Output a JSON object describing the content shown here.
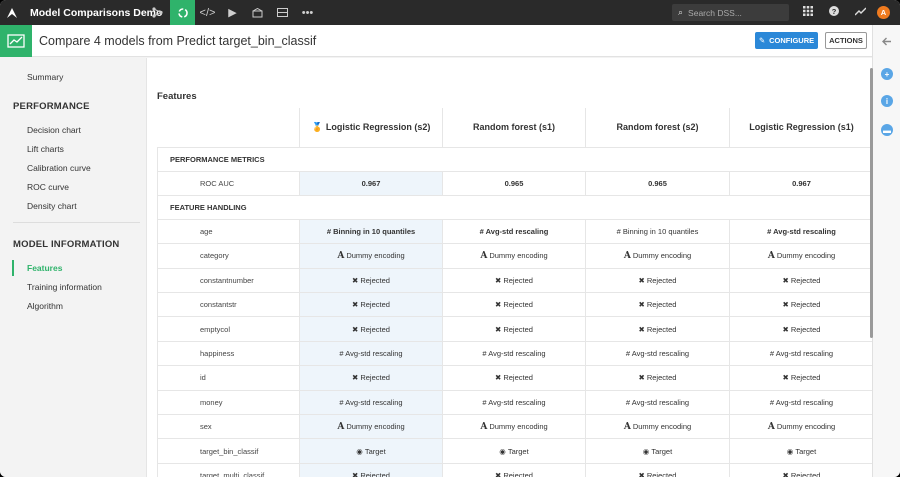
{
  "app": {
    "project_title": "Model Comparisons Demo",
    "search_placeholder": "Search DSS...",
    "user_initial": "A"
  },
  "header": {
    "title": "Compare 4 models from Predict target_bin_classif",
    "configure_label": "CONFIGURE",
    "actions_label": "ACTIONS"
  },
  "sidebar": {
    "summary": "Summary",
    "performance_title": "PERFORMANCE",
    "performance_items": [
      "Decision chart",
      "Lift charts",
      "Calibration curve",
      "ROC curve",
      "Density chart"
    ],
    "model_info_title": "MODEL INFORMATION",
    "model_info_items": [
      "Features",
      "Training information",
      "Algorithm"
    ],
    "active_item": "Features"
  },
  "content": {
    "section_title": "Features",
    "models": [
      {
        "name": "Logistic Regression (s2)",
        "color": "#2a70b8",
        "best": true
      },
      {
        "name": "Random forest (s1)",
        "color": "#f08c2a"
      },
      {
        "name": "Random forest (s2)",
        "color": "#2ea84a"
      },
      {
        "name": "Logistic Regression (s1)",
        "color": "#d62e2e"
      }
    ],
    "groups": [
      {
        "title": "PERFORMANCE METRICS",
        "rows": [
          {
            "feature": "ROC AUC",
            "values": [
              "0.967",
              "0.965",
              "0.965",
              "0.967"
            ],
            "bold": [
              true,
              true,
              true,
              true
            ]
          }
        ]
      },
      {
        "title": "FEATURE HANDLING",
        "rows": [
          {
            "feature": "age",
            "values": [
              "# Binning in 10 quantiles",
              "# Avg-std rescaling",
              "# Binning in 10 quantiles",
              "# Avg-std rescaling"
            ],
            "bold": [
              true,
              true,
              false,
              true
            ]
          },
          {
            "feature": "category",
            "values": [
              "Dummy encoding",
              "Dummy encoding",
              "Dummy encoding",
              "Dummy encoding"
            ],
            "icon": "text-A"
          },
          {
            "feature": "constantnumber",
            "values": [
              "Rejected",
              "Rejected",
              "Rejected",
              "Rejected"
            ],
            "icon": "x"
          },
          {
            "feature": "constantstr",
            "values": [
              "Rejected",
              "Rejected",
              "Rejected",
              "Rejected"
            ],
            "icon": "x"
          },
          {
            "feature": "emptycol",
            "values": [
              "Rejected",
              "Rejected",
              "Rejected",
              "Rejected"
            ],
            "icon": "x"
          },
          {
            "feature": "happiness",
            "values": [
              "# Avg-std rescaling",
              "# Avg-std rescaling",
              "# Avg-std rescaling",
              "# Avg-std rescaling"
            ]
          },
          {
            "feature": "id",
            "values": [
              "Rejected",
              "Rejected",
              "Rejected",
              "Rejected"
            ],
            "icon": "x"
          },
          {
            "feature": "money",
            "values": [
              "# Avg-std rescaling",
              "# Avg-std rescaling",
              "# Avg-std rescaling",
              "# Avg-std rescaling"
            ]
          },
          {
            "feature": "sex",
            "values": [
              "Dummy encoding",
              "Dummy encoding",
              "Dummy encoding",
              "Dummy encoding"
            ],
            "icon": "text-A"
          },
          {
            "feature": "target_bin_classif",
            "values": [
              "Target",
              "Target",
              "Target",
              "Target"
            ],
            "icon": "target"
          },
          {
            "feature": "target_multi_classif",
            "values": [
              "Rejected",
              "Rejected",
              "Rejected",
              "Rejected"
            ],
            "icon": "x"
          }
        ]
      }
    ]
  }
}
